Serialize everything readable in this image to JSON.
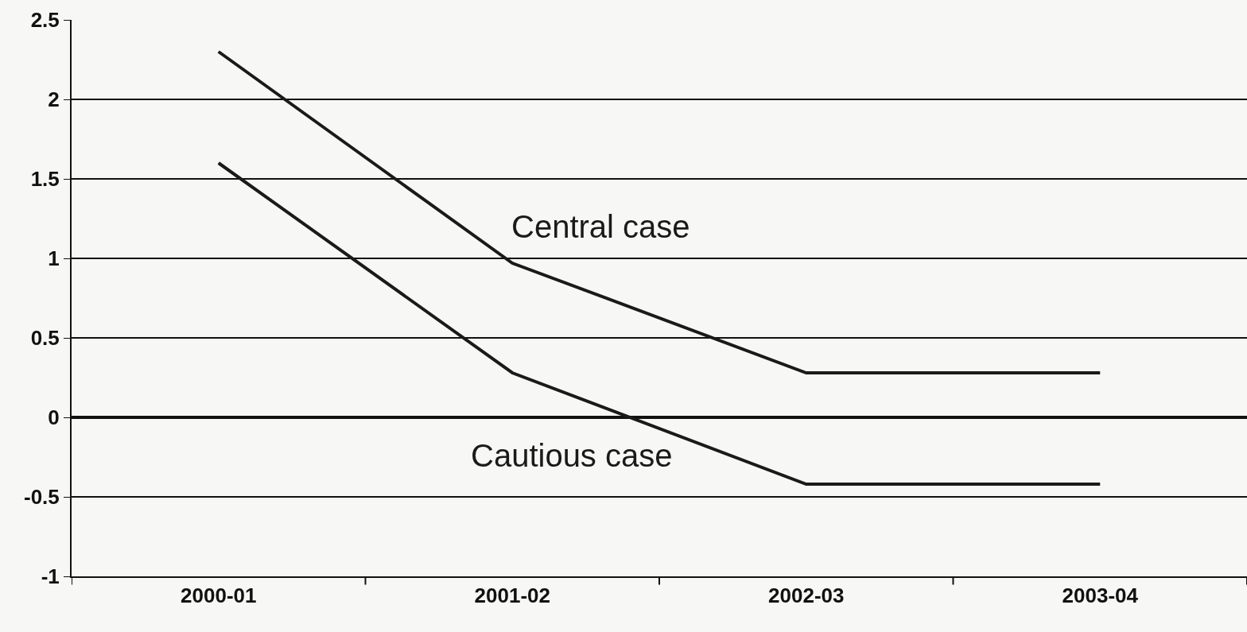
{
  "chart_data": {
    "type": "line",
    "categories": [
      "2000-01",
      "2001-02",
      "2002-03",
      "2003-04"
    ],
    "series": [
      {
        "name": "Central case",
        "color": "#1a1a1a",
        "values": [
          2.3,
          0.97,
          0.28,
          0.28
        ]
      },
      {
        "name": "Cautious case",
        "color": "#1a1a1a",
        "values": [
          1.6,
          0.28,
          -0.42,
          -0.42
        ]
      }
    ],
    "ylim": [
      -1,
      2.5
    ],
    "yticks": [
      -1,
      -0.5,
      0,
      0.5,
      1,
      1.5,
      2,
      2.5
    ],
    "grid": "y",
    "legend": false,
    "marker": "none",
    "line_style": "solid"
  }
}
